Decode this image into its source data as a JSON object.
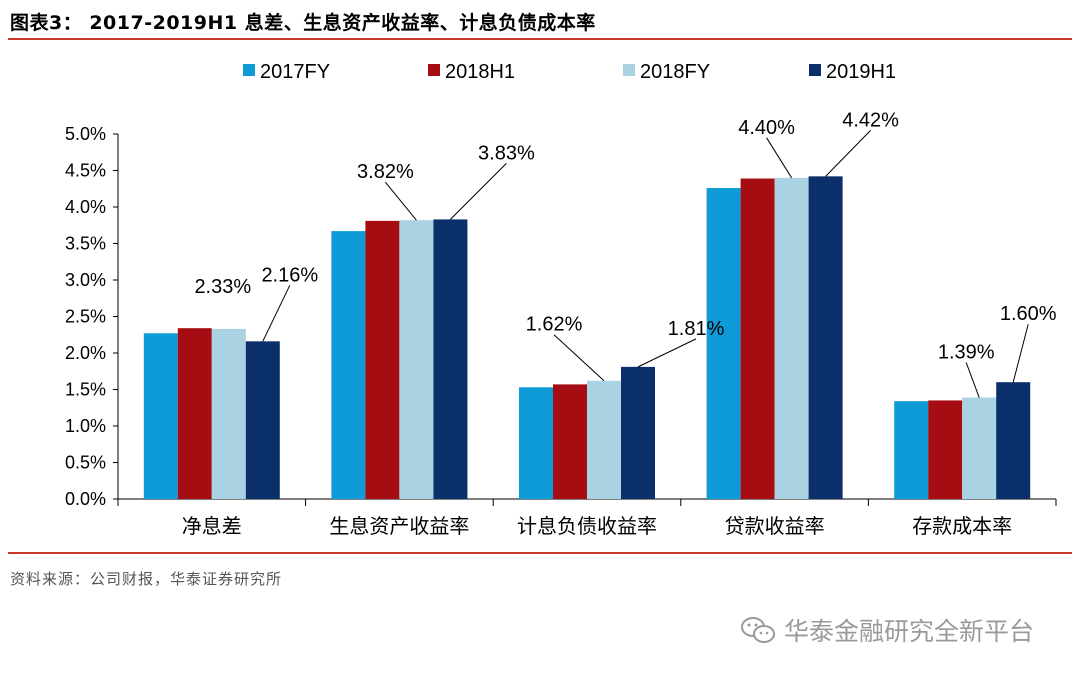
{
  "header": {
    "title": "图表3：  2017-2019H1 息差、生息资产收益率、计息负债成本率"
  },
  "footer": {
    "source": "资料来源：公司财报，华泰证券研究所"
  },
  "watermark": {
    "text": "华泰金融研究全新平台",
    "icon": "wechat-icon"
  },
  "colors": {
    "rule": "#c8392b",
    "2017FY": "#0f9bd7",
    "2018H1": "#a50d12",
    "2018FY": "#a9d3e3",
    "2019H1": "#0b2f6a"
  },
  "chart_data": {
    "type": "bar",
    "categories": [
      "净息差",
      "生息资产收益率",
      "计息负债收益率",
      "贷款收益率",
      "存款成本率"
    ],
    "series": [
      {
        "name": "2017FY",
        "values": [
          2.27,
          3.67,
          1.53,
          4.26,
          1.34
        ]
      },
      {
        "name": "2018H1",
        "values": [
          2.34,
          3.81,
          1.57,
          4.39,
          1.35
        ]
      },
      {
        "name": "2018FY",
        "values": [
          2.33,
          3.82,
          1.62,
          4.4,
          1.39
        ]
      },
      {
        "name": "2019H1",
        "values": [
          2.16,
          3.83,
          1.81,
          4.42,
          1.6
        ]
      }
    ],
    "ylim": [
      0,
      5.0
    ],
    "yticks": [
      "0.0%",
      "0.5%",
      "1.0%",
      "1.5%",
      "2.0%",
      "2.5%",
      "3.0%",
      "3.5%",
      "4.0%",
      "4.5%",
      "5.0%"
    ],
    "legend_position": "top",
    "grid": false,
    "data_labels": [
      {
        "category": 0,
        "series": "2018FY",
        "text": "2.33%"
      },
      {
        "category": 0,
        "series": "2019H1",
        "text": "2.16%"
      },
      {
        "category": 1,
        "series": "2018FY",
        "text": "3.82%"
      },
      {
        "category": 1,
        "series": "2019H1",
        "text": "3.83%"
      },
      {
        "category": 2,
        "series": "2018FY",
        "text": "1.62%"
      },
      {
        "category": 2,
        "series": "2019H1",
        "text": "1.81%"
      },
      {
        "category": 3,
        "series": "2018FY",
        "text": "4.40%"
      },
      {
        "category": 3,
        "series": "2019H1",
        "text": "4.42%"
      },
      {
        "category": 4,
        "series": "2018FY",
        "text": "1.39%"
      },
      {
        "category": 4,
        "series": "2019H1",
        "text": "1.60%"
      }
    ]
  }
}
